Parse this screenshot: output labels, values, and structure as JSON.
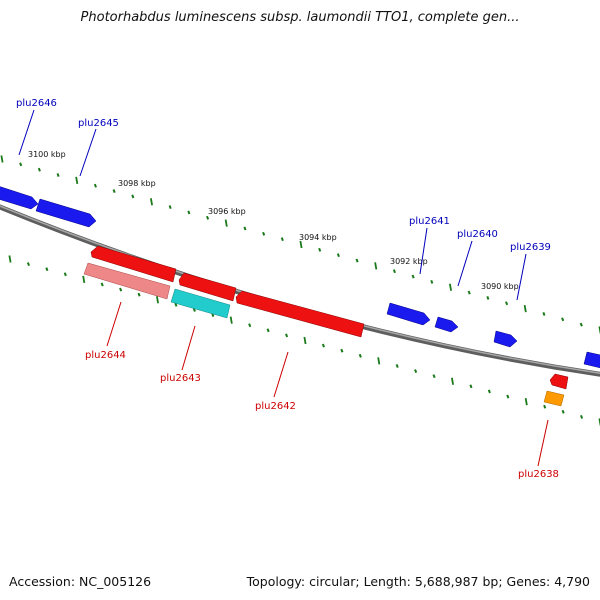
{
  "title": "Photorhabdus luminescens subsp. laumondii TTO1, complete gen...",
  "footer": {
    "accession": "Accession: NC_005126",
    "summary": "Topology: circular; Length: 5,688,987 bp; Genes: 4,790"
  },
  "colors": {
    "backbone": "#808080",
    "tick": "#1a7a1a",
    "forward_gene": "#1a1aee",
    "reverse_gene": "#ee1111",
    "reverse_label": "#cc0000",
    "forward_label": "#0000bb",
    "pink_gene": "#ee8888",
    "cyan_gene": "#22cccc",
    "orange_gene": "#ff9900"
  },
  "scale_labels": [
    "3100 kbp",
    "3098 kbp",
    "3096 kbp",
    "3094 kbp",
    "3092 kbp",
    "3090 kbp"
  ],
  "forward_genes": [
    "plu2646",
    "plu2645",
    "plu2641",
    "plu2640",
    "plu2639"
  ],
  "reverse_genes": [
    "plu2644",
    "plu2643",
    "plu2642",
    "plu2638"
  ]
}
